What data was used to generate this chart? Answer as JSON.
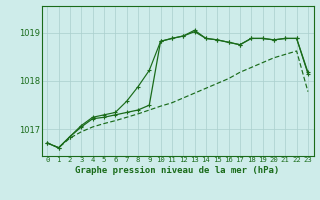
{
  "title": "Graphe pression niveau de la mer (hPa)",
  "xlabel_ticks": [
    "0",
    "1",
    "2",
    "3",
    "4",
    "5",
    "6",
    "7",
    "8",
    "9",
    "10",
    "11",
    "12",
    "13",
    "14",
    "15",
    "16",
    "17",
    "18",
    "19",
    "20",
    "21",
    "22",
    "23"
  ],
  "ylim": [
    1016.45,
    1019.55
  ],
  "yticks": [
    1017,
    1018,
    1019
  ],
  "background_color": "#ceecea",
  "grid_color": "#aacfcd",
  "line_color": "#1a6b1a",
  "series1": [
    1016.72,
    1016.62,
    1016.82,
    1016.95,
    1017.05,
    1017.12,
    1017.18,
    1017.25,
    1017.32,
    1017.4,
    1017.48,
    1017.55,
    1017.65,
    1017.75,
    1017.85,
    1017.95,
    1018.05,
    1018.18,
    1018.28,
    1018.38,
    1018.48,
    1018.55,
    1018.62,
    1017.78
  ],
  "series2": [
    1016.72,
    1016.62,
    1016.85,
    1017.05,
    1017.22,
    1017.25,
    1017.3,
    1017.35,
    1017.4,
    1017.5,
    1018.82,
    1018.88,
    1018.93,
    1019.02,
    1018.88,
    1018.85,
    1018.8,
    1018.75,
    1018.88,
    1018.88,
    1018.85,
    1018.88,
    1018.88,
    1018.18
  ],
  "series3": [
    1016.72,
    1016.62,
    1016.85,
    1017.08,
    1017.25,
    1017.3,
    1017.35,
    1017.58,
    1017.88,
    1018.22,
    1018.82,
    1018.88,
    1018.93,
    1019.05,
    1018.88,
    1018.85,
    1018.8,
    1018.75,
    1018.88,
    1018.88,
    1018.85,
    1018.88,
    1018.88,
    1018.15
  ],
  "font_color": "#1a6b1a"
}
